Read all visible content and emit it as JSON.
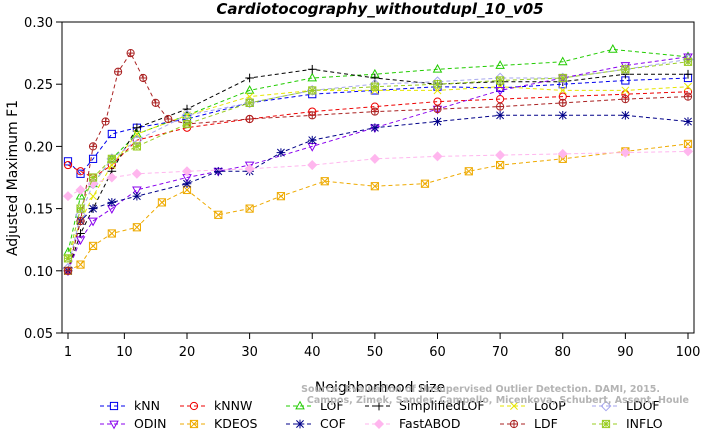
{
  "chart_data": {
    "type": "line",
    "title": "Cardiotocography_withoutdupl_10_v05",
    "xlabel": "Neighborhood size",
    "ylabel": "Adjusted Maximum F1",
    "xlim": [
      1,
      100
    ],
    "ylim": [
      0.05,
      0.3
    ],
    "xticks": [
      "1",
      "10",
      "20",
      "30",
      "40",
      "50",
      "60",
      "70",
      "80",
      "90",
      "100"
    ],
    "yticks": [
      "0.05",
      "0.10",
      "0.15",
      "0.20",
      "0.25",
      "0.30"
    ],
    "grid": false,
    "legend_position": "bottom",
    "watermark": [
      "Source: Evaluation of Unsupervised Outlier Detection. DAMI, 2015.",
      "Campos, Zimek, Sander, Campello, Micenkova, Schubert, Assent, Houle"
    ],
    "series": [
      {
        "name": "kNN",
        "color": "#0000ee",
        "marker": "square",
        "points": [
          [
            1,
            0.188
          ],
          [
            3,
            0.178
          ],
          [
            5,
            0.19
          ],
          [
            8,
            0.21
          ],
          [
            12,
            0.215
          ],
          [
            20,
            0.222
          ],
          [
            30,
            0.235
          ],
          [
            40,
            0.242
          ],
          [
            50,
            0.245
          ],
          [
            60,
            0.248
          ],
          [
            70,
            0.247
          ],
          [
            80,
            0.25
          ],
          [
            90,
            0.253
          ],
          [
            100,
            0.255
          ]
        ]
      },
      {
        "name": "kNNW",
        "color": "#ee0000",
        "marker": "circle",
        "points": [
          [
            1,
            0.185
          ],
          [
            3,
            0.18
          ],
          [
            5,
            0.175
          ],
          [
            8,
            0.185
          ],
          [
            12,
            0.205
          ],
          [
            20,
            0.215
          ],
          [
            30,
            0.222
          ],
          [
            40,
            0.228
          ],
          [
            50,
            0.232
          ],
          [
            60,
            0.236
          ],
          [
            70,
            0.238
          ],
          [
            80,
            0.24
          ],
          [
            90,
            0.242
          ],
          [
            100,
            0.244
          ]
        ]
      },
      {
        "name": "LOF",
        "color": "#22cc00",
        "marker": "triangle-up",
        "points": [
          [
            1,
            0.115
          ],
          [
            3,
            0.16
          ],
          [
            5,
            0.17
          ],
          [
            8,
            0.19
          ],
          [
            12,
            0.21
          ],
          [
            20,
            0.225
          ],
          [
            30,
            0.245
          ],
          [
            40,
            0.255
          ],
          [
            50,
            0.258
          ],
          [
            60,
            0.262
          ],
          [
            70,
            0.265
          ],
          [
            80,
            0.268
          ],
          [
            88,
            0.278
          ],
          [
            100,
            0.272
          ]
        ]
      },
      {
        "name": "SimplifiedLOF",
        "color": "#000000",
        "marker": "plus",
        "points": [
          [
            1,
            0.1
          ],
          [
            3,
            0.13
          ],
          [
            5,
            0.15
          ],
          [
            8,
            0.18
          ],
          [
            12,
            0.215
          ],
          [
            20,
            0.23
          ],
          [
            30,
            0.255
          ],
          [
            40,
            0.262
          ],
          [
            50,
            0.255
          ],
          [
            60,
            0.25
          ],
          [
            70,
            0.252
          ],
          [
            80,
            0.252
          ],
          [
            90,
            0.258
          ],
          [
            100,
            0.258
          ]
        ]
      },
      {
        "name": "LoOP",
        "color": "#e6e600",
        "marker": "cross",
        "points": [
          [
            1,
            0.11
          ],
          [
            3,
            0.14
          ],
          [
            5,
            0.16
          ],
          [
            8,
            0.185
          ],
          [
            12,
            0.21
          ],
          [
            20,
            0.225
          ],
          [
            30,
            0.24
          ],
          [
            40,
            0.245
          ],
          [
            50,
            0.245
          ],
          [
            60,
            0.245
          ],
          [
            70,
            0.248
          ],
          [
            80,
            0.245
          ],
          [
            90,
            0.245
          ],
          [
            100,
            0.248
          ]
        ]
      },
      {
        "name": "LDOF",
        "color": "#a6a6ee",
        "marker": "diamond",
        "points": [
          [
            1,
            0.102
          ],
          [
            3,
            0.145
          ],
          [
            5,
            0.17
          ],
          [
            8,
            0.19
          ],
          [
            12,
            0.205
          ],
          [
            20,
            0.225
          ],
          [
            30,
            0.235
          ],
          [
            40,
            0.245
          ],
          [
            50,
            0.25
          ],
          [
            60,
            0.252
          ],
          [
            70,
            0.255
          ],
          [
            80,
            0.255
          ],
          [
            90,
            0.262
          ],
          [
            100,
            0.27
          ]
        ]
      },
      {
        "name": "ODIN",
        "color": "#8800ee",
        "marker": "triangle-down",
        "points": [
          [
            1,
            0.1
          ],
          [
            3,
            0.125
          ],
          [
            5,
            0.14
          ],
          [
            8,
            0.15
          ],
          [
            12,
            0.165
          ],
          [
            20,
            0.175
          ],
          [
            25,
            0.18
          ],
          [
            30,
            0.185
          ],
          [
            40,
            0.2
          ],
          [
            50,
            0.215
          ],
          [
            60,
            0.23
          ],
          [
            70,
            0.245
          ],
          [
            80,
            0.255
          ],
          [
            90,
            0.265
          ],
          [
            100,
            0.272
          ]
        ]
      },
      {
        "name": "KDEOS",
        "color": "#eeaa00",
        "marker": "square-x",
        "points": [
          [
            1,
            0.1
          ],
          [
            3,
            0.105
          ],
          [
            5,
            0.12
          ],
          [
            8,
            0.13
          ],
          [
            12,
            0.135
          ],
          [
            16,
            0.155
          ],
          [
            20,
            0.165
          ],
          [
            25,
            0.145
          ],
          [
            30,
            0.15
          ],
          [
            35,
            0.16
          ],
          [
            42,
            0.172
          ],
          [
            50,
            0.168
          ],
          [
            58,
            0.17
          ],
          [
            65,
            0.18
          ],
          [
            70,
            0.185
          ],
          [
            80,
            0.19
          ],
          [
            90,
            0.196
          ],
          [
            100,
            0.202
          ]
        ]
      },
      {
        "name": "COF",
        "color": "#000088",
        "marker": "asterisk",
        "points": [
          [
            1,
            0.1
          ],
          [
            3,
            0.14
          ],
          [
            5,
            0.15
          ],
          [
            8,
            0.155
          ],
          [
            12,
            0.16
          ],
          [
            20,
            0.17
          ],
          [
            25,
            0.18
          ],
          [
            30,
            0.18
          ],
          [
            35,
            0.195
          ],
          [
            40,
            0.205
          ],
          [
            50,
            0.215
          ],
          [
            60,
            0.22
          ],
          [
            70,
            0.225
          ],
          [
            80,
            0.225
          ],
          [
            90,
            0.225
          ],
          [
            100,
            0.22
          ]
        ]
      },
      {
        "name": "FastABOD",
        "color": "#ffb6ee",
        "marker": "diamond-filled",
        "points": [
          [
            1,
            0.16
          ],
          [
            3,
            0.165
          ],
          [
            5,
            0.17
          ],
          [
            8,
            0.175
          ],
          [
            12,
            0.178
          ],
          [
            20,
            0.18
          ],
          [
            30,
            0.182
          ],
          [
            40,
            0.185
          ],
          [
            50,
            0.19
          ],
          [
            60,
            0.192
          ],
          [
            70,
            0.193
          ],
          [
            80,
            0.194
          ],
          [
            90,
            0.195
          ],
          [
            100,
            0.196
          ]
        ]
      },
      {
        "name": "LDF",
        "color": "#aa2222",
        "marker": "circle-plus",
        "points": [
          [
            1,
            0.1
          ],
          [
            3,
            0.14
          ],
          [
            5,
            0.2
          ],
          [
            7,
            0.22
          ],
          [
            9,
            0.26
          ],
          [
            11,
            0.275
          ],
          [
            13,
            0.255
          ],
          [
            15,
            0.235
          ],
          [
            17,
            0.222
          ],
          [
            20,
            0.218
          ],
          [
            30,
            0.222
          ],
          [
            40,
            0.225
          ],
          [
            50,
            0.228
          ],
          [
            60,
            0.23
          ],
          [
            70,
            0.232
          ],
          [
            80,
            0.235
          ],
          [
            90,
            0.238
          ],
          [
            100,
            0.24
          ]
        ]
      },
      {
        "name": "INFLO",
        "color": "#99cc22",
        "marker": "square-asterisk",
        "points": [
          [
            1,
            0.11
          ],
          [
            3,
            0.15
          ],
          [
            5,
            0.175
          ],
          [
            8,
            0.19
          ],
          [
            12,
            0.2
          ],
          [
            20,
            0.218
          ],
          [
            30,
            0.235
          ],
          [
            40,
            0.245
          ],
          [
            50,
            0.248
          ],
          [
            60,
            0.25
          ],
          [
            70,
            0.253
          ],
          [
            80,
            0.255
          ],
          [
            90,
            0.262
          ],
          [
            100,
            0.268
          ]
        ]
      }
    ]
  }
}
